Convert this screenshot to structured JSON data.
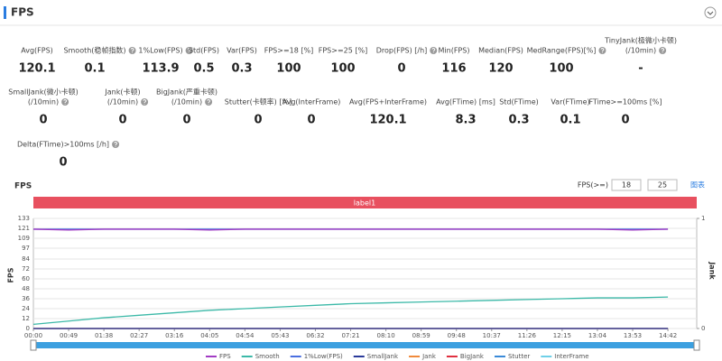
{
  "header": {
    "title": "FPS"
  },
  "stats": [
    [
      {
        "label": [
          "Avg(FPS)"
        ],
        "value": "120.1"
      },
      {
        "label": [
          "Smooth(稳帧指数)"
        ],
        "value": "0.1",
        "help": true
      },
      {
        "label": [
          "1%Low(FPS)"
        ],
        "value": "113.9",
        "help": true
      },
      {
        "label": [
          "Std(FPS)"
        ],
        "value": "0.5"
      },
      {
        "label": [
          "Var(FPS)"
        ],
        "value": "0.3"
      },
      {
        "label": [
          "FPS>=18 [%]"
        ],
        "value": "100"
      },
      {
        "label": [
          "FPS>=25 [%]"
        ],
        "value": "100"
      },
      {
        "label": [
          "Drop(FPS) [/h]"
        ],
        "value": "0",
        "help": true
      },
      {
        "label": [
          "Min(FPS)"
        ],
        "value": "116"
      },
      {
        "label": [
          "Median(FPS)"
        ],
        "value": "120"
      },
      {
        "label": [
          "MedRange(FPS)[%]"
        ],
        "value": "100",
        "help": true
      },
      {
        "label": [
          "TinyJank(极微小卡顿)",
          "(/10min)"
        ],
        "value": "-",
        "help": true
      }
    ],
    [
      {
        "label": [
          "SmallJank(微小卡顿)",
          "(/10min)"
        ],
        "value": "0",
        "help": true
      },
      {
        "label": [
          "Jank(卡顿)",
          "(/10min)"
        ],
        "value": "0",
        "help": true
      },
      {
        "label": [
          "BigJank(严重卡顿)",
          "(/10min)"
        ],
        "value": "0",
        "help": true
      },
      {
        "label": [
          "Stutter(卡顿率) [%]"
        ],
        "value": "0"
      },
      {
        "label": [
          "Avg(InterFrame)"
        ],
        "value": "0"
      },
      {
        "label": [
          "Avg(FPS+InterFrame)"
        ],
        "value": "120.1"
      },
      {
        "label": [
          "Avg(FTime) [ms]"
        ],
        "value": "8.3"
      },
      {
        "label": [
          "Std(FTime)"
        ],
        "value": "0.3"
      },
      {
        "label": [
          "Var(FTime)"
        ],
        "value": "0.1"
      },
      {
        "label": [
          "FTime>=100ms [%]"
        ],
        "value": "0"
      }
    ],
    [
      {
        "label": [
          "Delta(FTime)>100ms [/h]"
        ],
        "value": "0",
        "help": true
      }
    ]
  ],
  "controls": {
    "label": "FPS(>=)",
    "inputs": [
      "18",
      "25"
    ],
    "link": "图表"
  },
  "chart_data": {
    "type": "line",
    "title": "FPS",
    "band_label": "label1",
    "y_label": "FPS",
    "y2_label": "Jank",
    "categories": [
      "00:00",
      "00:49",
      "01:38",
      "02:27",
      "03:16",
      "04:05",
      "04:54",
      "05:43",
      "06:32",
      "07:21",
      "08:10",
      "08:59",
      "09:48",
      "10:37",
      "11:26",
      "12:15",
      "13:04",
      "13:53",
      "14:42"
    ],
    "ylim": [
      0,
      133
    ],
    "yticks": [
      0,
      12,
      24,
      36,
      48,
      60,
      72,
      84,
      97,
      109,
      121,
      133
    ],
    "y2lim": [
      0,
      1
    ],
    "y2ticks": [
      0,
      1
    ],
    "grid": true,
    "series": [
      {
        "name": "FPS",
        "color": "#a23cc4",
        "values": [
          120,
          119,
          120,
          120,
          120,
          119,
          120,
          120,
          120,
          120,
          120,
          120,
          120,
          120,
          120,
          120,
          120,
          119,
          120
        ]
      },
      {
        "name": "Smooth",
        "color": "#3cb9a8",
        "values": [
          5,
          9,
          13,
          16,
          19,
          22,
          24,
          26,
          28,
          30,
          31,
          32,
          33,
          34,
          35,
          36,
          37,
          37,
          38
        ]
      },
      {
        "name": "1%Low(FPS)",
        "color": "#4a6fe0",
        "values": [
          120,
          120,
          120,
          120,
          120,
          120,
          120,
          120,
          120,
          120,
          120,
          120,
          120,
          120,
          120,
          120,
          120,
          120,
          120
        ]
      },
      {
        "name": "SmallJank",
        "color": "#2a3a9a",
        "axis": "y2",
        "values": [
          0,
          0,
          0,
          0,
          0,
          0,
          0,
          0,
          0,
          0,
          0,
          0,
          0,
          0,
          0,
          0,
          0,
          0,
          0
        ]
      },
      {
        "name": "Jank",
        "color": "#f08a3c",
        "axis": "y2",
        "values": [
          0,
          0,
          0,
          0,
          0,
          0,
          0,
          0,
          0,
          0,
          0,
          0,
          0,
          0,
          0,
          0,
          0,
          0,
          0
        ]
      },
      {
        "name": "BigJank",
        "color": "#e03040",
        "axis": "y2",
        "values": [
          0,
          0,
          0,
          0,
          0,
          0,
          0,
          0,
          0,
          0,
          0,
          0,
          0,
          0,
          0,
          0,
          0,
          0,
          0
        ]
      },
      {
        "name": "Stutter",
        "color": "#3a8ad8",
        "axis": "y2",
        "values": [
          0,
          0,
          0,
          0,
          0,
          0,
          0,
          0,
          0,
          0,
          0,
          0,
          0,
          0,
          0,
          0,
          0,
          0,
          0
        ]
      },
      {
        "name": "InterFrame",
        "color": "#6fd0e8",
        "values": [
          0,
          0,
          0,
          0,
          0,
          0,
          0,
          0,
          0,
          0,
          0,
          0,
          0,
          0,
          0,
          0,
          0,
          0,
          0
        ]
      }
    ]
  }
}
